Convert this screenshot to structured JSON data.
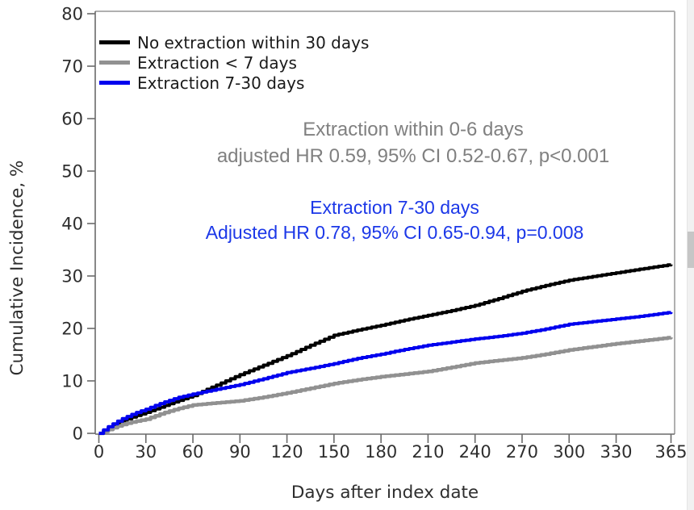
{
  "chart_data": {
    "type": "line",
    "title": "",
    "xlabel": "Days after index date",
    "ylabel": "Cumulative Incidence, %",
    "xlim": [
      0,
      365
    ],
    "ylim": [
      0,
      80
    ],
    "x_ticks": [
      0,
      30,
      60,
      90,
      120,
      150,
      180,
      210,
      240,
      270,
      300,
      330,
      365
    ],
    "y_ticks": [
      0,
      10,
      20,
      30,
      40,
      50,
      60,
      70,
      80
    ],
    "grid": false,
    "legend_position": "top-left",
    "curve_style": "step-after",
    "x": [
      0,
      5,
      10,
      15,
      20,
      25,
      30,
      40,
      50,
      60,
      75,
      90,
      105,
      120,
      135,
      150,
      165,
      180,
      195,
      210,
      225,
      240,
      255,
      270,
      285,
      300,
      315,
      330,
      345,
      365
    ],
    "series": [
      {
        "name": "No extraction within 30 days",
        "color": "#000000",
        "line_width": 4,
        "y": [
          0,
          0.9,
          1.7,
          2.4,
          3.0,
          3.5,
          4.0,
          5.1,
          6.2,
          7.2,
          9.2,
          11.2,
          13.0,
          14.8,
          16.8,
          18.7,
          19.7,
          20.6,
          21.6,
          22.5,
          23.4,
          24.4,
          25.7,
          27.1,
          28.2,
          29.2,
          29.9,
          30.6,
          31.3,
          32.2
        ]
      },
      {
        "name": "Extraction < 7 days",
        "color": "#919191",
        "line_width": 4.5,
        "y": [
          0,
          0.6,
          1.2,
          1.7,
          2.1,
          2.4,
          2.7,
          3.8,
          4.7,
          5.4,
          5.8,
          6.2,
          6.9,
          7.7,
          8.6,
          9.5,
          10.2,
          10.8,
          11.3,
          11.8,
          12.6,
          13.4,
          13.9,
          14.4,
          15.1,
          15.9,
          16.5,
          17.1,
          17.6,
          18.3
        ]
      },
      {
        "name": "Extraction 7-30 days",
        "color": "#0000ee",
        "line_width": 4,
        "y": [
          0,
          1.1,
          2.0,
          2.8,
          3.5,
          4.1,
          4.6,
          5.8,
          6.8,
          7.5,
          8.4,
          9.3,
          10.4,
          11.6,
          12.4,
          13.3,
          14.3,
          15.1,
          16.0,
          16.8,
          17.4,
          18.0,
          18.5,
          19.1,
          19.9,
          20.8,
          21.3,
          21.8,
          22.3,
          23.1
        ]
      }
    ],
    "annotations": [
      {
        "color": "#808080",
        "lines": [
          "Extraction within 0-6 days",
          "adjusted HR 0.59, 95% CI 0.52-0.67, p<0.001"
        ]
      },
      {
        "color": "#1c38e8",
        "lines": [
          "Extraction 7-30 days",
          "Adjusted HR 0.78, 95% CI 0.65-0.94, p=0.008"
        ]
      }
    ],
    "colors": {
      "axis_line": "#6a6a6a",
      "plot_border": "#b0b0b0",
      "tick_text": "#2e2e2e"
    }
  }
}
